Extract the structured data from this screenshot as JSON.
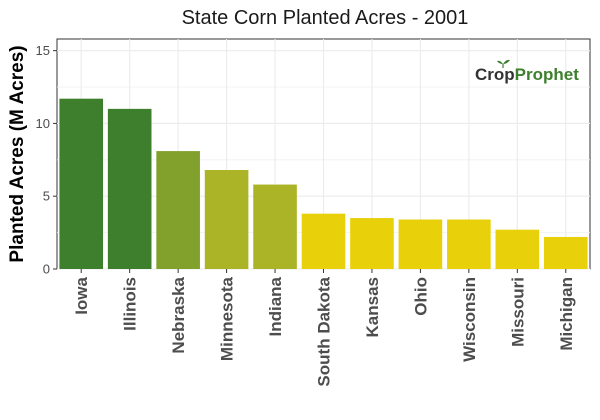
{
  "chart_data": {
    "type": "bar",
    "title": "State Corn Planted Acres - 2001",
    "ylabel": "Planted Acres (M Acres)",
    "xlabel": "",
    "ylim": [
      0,
      15.8
    ],
    "yticks": [
      0,
      5,
      10,
      15
    ],
    "grid": true,
    "categories": [
      "Iowa",
      "Illinois",
      "Nebraska",
      "Minnesota",
      "Indiana",
      "South Dakota",
      "Kansas",
      "Ohio",
      "Wisconsin",
      "Missouri",
      "Michigan"
    ],
    "values": [
      11.7,
      11.0,
      8.1,
      6.8,
      5.8,
      3.8,
      3.5,
      3.4,
      3.4,
      2.7,
      2.2
    ],
    "colors": [
      "#3d7f2c",
      "#3d7f2c",
      "#81a12c",
      "#abb426",
      "#abb426",
      "#e8d10b",
      "#e8d10b",
      "#e8d10b",
      "#e8d10b",
      "#e8d10b",
      "#e8d10b"
    ]
  },
  "logo": {
    "part1": "Crop",
    "part2": "Prophet",
    "icon": "seedling-icon"
  }
}
